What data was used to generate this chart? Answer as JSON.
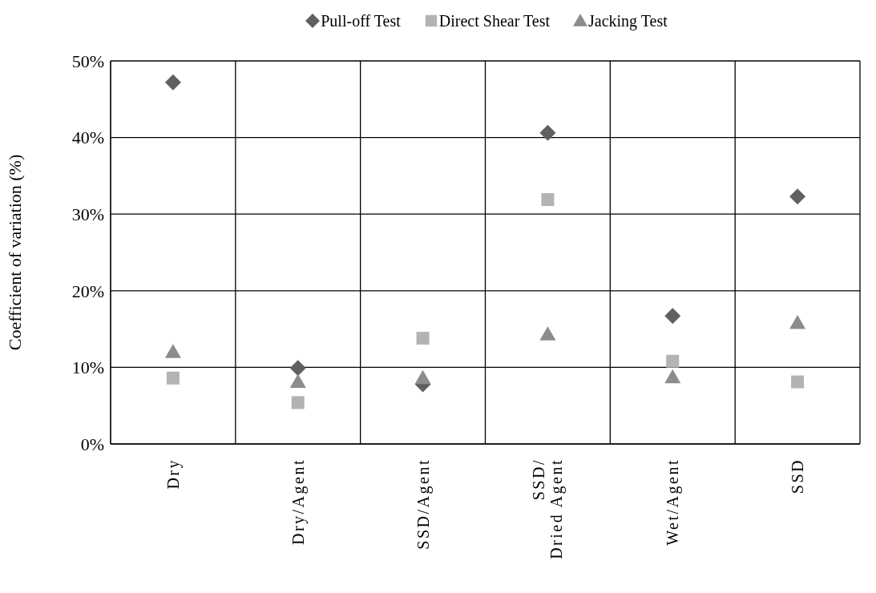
{
  "chart_data": {
    "type": "scatter",
    "ylabel": "Coefficient of variation (%)",
    "categories": [
      "Dry",
      "Dry/Agent",
      "SSD/Agent",
      "SSD/\nDried Agent",
      "Wet/Agent",
      "SSD"
    ],
    "series": [
      {
        "name": "Pull-off Test",
        "color": "#606060",
        "marker": "diamond",
        "values": [
          47.2,
          9.9,
          7.8,
          40.6,
          16.7,
          32.3
        ]
      },
      {
        "name": "Direct Shear Test",
        "color": "#b3b3b3",
        "marker": "square",
        "values": [
          8.6,
          5.4,
          13.8,
          31.9,
          10.8,
          8.1
        ]
      },
      {
        "name": "Jacking Test",
        "color": "#8c8c8c",
        "marker": "triangle",
        "values": [
          12.0,
          8.1,
          8.6,
          14.3,
          8.7,
          15.8
        ]
      }
    ],
    "ylim": [
      0,
      50
    ],
    "yticks": [
      {
        "value": 0,
        "label": "0%"
      },
      {
        "value": 10,
        "label": "10%"
      },
      {
        "value": 20,
        "label": "20%"
      },
      {
        "value": 30,
        "label": "30%"
      },
      {
        "value": 40,
        "label": "40%"
      },
      {
        "value": 50,
        "label": "50%"
      }
    ],
    "grid": true,
    "legend": "top"
  }
}
